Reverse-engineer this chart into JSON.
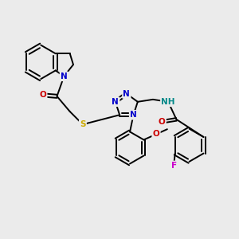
{
  "bg_color": "#ebebeb",
  "atom_colors": {
    "C": "#000000",
    "N": "#0000cc",
    "O": "#cc0000",
    "S": "#ccaa00",
    "F": "#cc00cc",
    "H": "#008888"
  },
  "bond_lw": 1.4,
  "font_size": 7.5
}
